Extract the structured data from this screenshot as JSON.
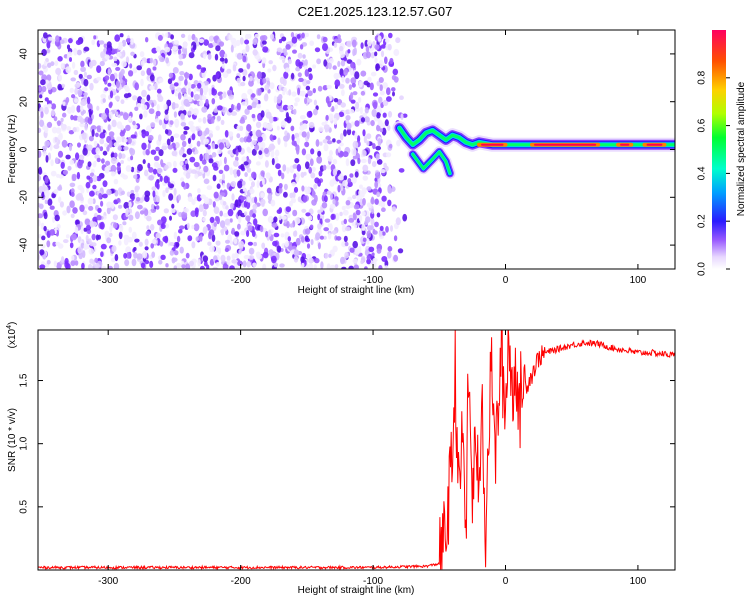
{
  "title": "C2E1.2025.123.12.57.G07",
  "chart_data": [
    {
      "type": "heatmap",
      "title": "C2E1.2025.123.12.57.G07",
      "xlabel": "Height of straight line (km)",
      "ylabel": "Frequency (Hz)",
      "xlim": [
        -353,
        128
      ],
      "ylim": [
        -50,
        50
      ],
      "xticks": [
        -300,
        -200,
        -100,
        0,
        100
      ],
      "yticks": [
        -40,
        -20,
        0,
        20,
        40
      ],
      "noise_region_x": [
        -353,
        -75
      ],
      "noise_y_range": [
        -50,
        48
      ],
      "signal_trace": [
        {
          "x": -80,
          "y": 9
        },
        {
          "x": -75,
          "y": 5
        },
        {
          "x": -70,
          "y": 2
        },
        {
          "x": -65,
          "y": 4
        },
        {
          "x": -60,
          "y": 7
        },
        {
          "x": -55,
          "y": 8
        },
        {
          "x": -50,
          "y": 6
        },
        {
          "x": -45,
          "y": 4
        },
        {
          "x": -40,
          "y": 6
        },
        {
          "x": -35,
          "y": 5
        },
        {
          "x": -30,
          "y": 3
        },
        {
          "x": -25,
          "y": 2
        },
        {
          "x": -20,
          "y": 3
        },
        {
          "x": -10,
          "y": 2
        },
        {
          "x": 0,
          "y": 2
        },
        {
          "x": 20,
          "y": 2
        },
        {
          "x": 50,
          "y": 2
        },
        {
          "x": 80,
          "y": 2
        },
        {
          "x": 100,
          "y": 2
        },
        {
          "x": 128,
          "y": 2
        }
      ],
      "signal_branch": [
        {
          "x": -70,
          "y": -2
        },
        {
          "x": -62,
          "y": -8
        },
        {
          "x": -55,
          "y": -4
        },
        {
          "x": -50,
          "y": -1
        },
        {
          "x": -45,
          "y": -5
        },
        {
          "x": -42,
          "y": -10
        }
      ],
      "colorbar": {
        "label": "Normalized spectral amplitude",
        "range": [
          0.0,
          1.0
        ],
        "ticks": [
          "0.0",
          "0.2",
          "0.4",
          "0.6",
          "0.8"
        ],
        "tick_values": [
          0.0,
          0.2,
          0.4,
          0.6,
          0.8
        ],
        "colors": [
          "#ffffff",
          "#e8d8ff",
          "#7a2cff",
          "#1a1aff",
          "#00c8ff",
          "#00ff66",
          "#b0ff00",
          "#ffd000",
          "#ff5000",
          "#ff0050"
        ]
      }
    },
    {
      "type": "line",
      "xlabel": "Height of straight line (km)",
      "ylabel": "SNR (10 * v/v)",
      "scale_label": "(x10",
      "scale_exp": "4",
      "xlim": [
        -353,
        128
      ],
      "ylim": [
        0,
        1.9
      ],
      "xticks": [
        -300,
        -200,
        -100,
        0,
        100
      ],
      "yticks": [
        0.5,
        1.0,
        1.5
      ],
      "ytick_labels": [
        "0.5",
        "1.0",
        "1.5"
      ],
      "color": "#ff0000",
      "series": [
        {
          "x": [
            -353,
            -300,
            -200,
            -100,
            -60,
            -50,
            -45,
            -40,
            -38,
            -35,
            -32,
            -30,
            -28,
            -25,
            -22,
            -20,
            -18,
            -15,
            -12,
            -10,
            -8,
            -5,
            -3,
            0,
            2,
            5,
            8,
            10,
            12,
            15,
            20,
            25,
            30,
            40,
            50,
            60,
            70,
            80,
            90,
            100,
            110,
            120,
            128
          ],
          "y": [
            0.02,
            0.02,
            0.02,
            0.02,
            0.03,
            0.05,
            0.3,
            0.9,
            1.6,
            0.5,
            1.2,
            0.2,
            1.55,
            0.6,
            1.1,
            0.4,
            1.5,
            0.3,
            1.3,
            1.65,
            0.8,
            1.4,
            1.7,
            1.2,
            1.9,
            1.4,
            1.7,
            1.1,
            1.5,
            1.45,
            1.55,
            1.68,
            1.72,
            1.75,
            1.78,
            1.8,
            1.79,
            1.76,
            1.74,
            1.72,
            1.72,
            1.71,
            1.7
          ]
        }
      ]
    }
  ]
}
